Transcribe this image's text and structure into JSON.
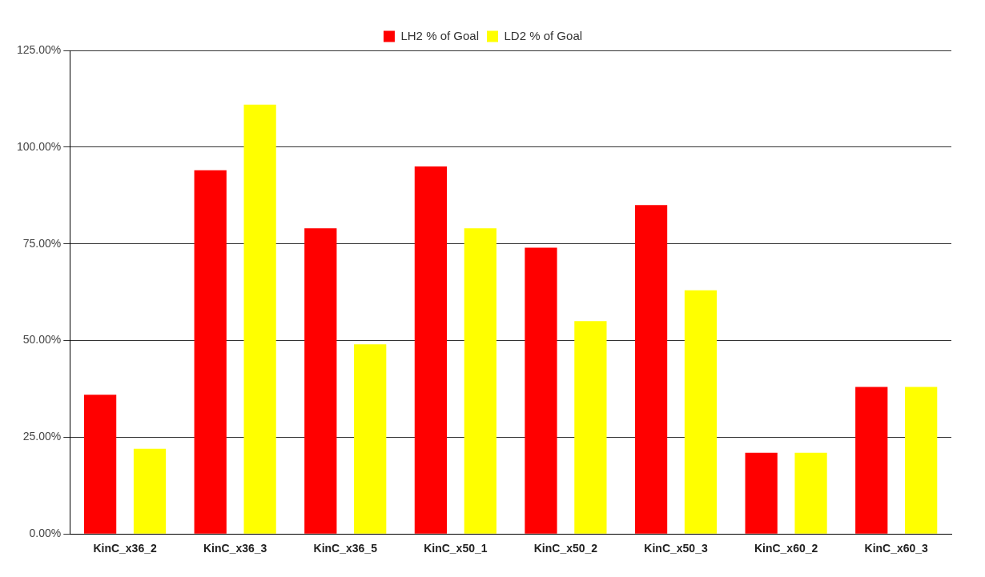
{
  "chart_data": {
    "type": "bar",
    "categories": [
      "KinC_x36_2",
      "KinC_x36_3",
      "KinC_x36_5",
      "KinC_x50_1",
      "KinC_x50_2",
      "KinC_x50_3",
      "KinC_x60_2",
      "KinC_x60_3"
    ],
    "series": [
      {
        "name": "LH2 % of Goal",
        "color": "#ff0000",
        "values": [
          36,
          94,
          79,
          95,
          74,
          85,
          21,
          38
        ]
      },
      {
        "name": "LD2 % of Goal",
        "color": "#ffff00",
        "values": [
          22,
          111,
          49,
          79,
          55,
          63,
          21,
          38
        ]
      }
    ],
    "ylim": [
      0,
      125
    ],
    "yticks": [
      {
        "value": 0,
        "label": "0.00%"
      },
      {
        "value": 25,
        "label": "25.00%"
      },
      {
        "value": 50,
        "label": "50.00%"
      },
      {
        "value": 75,
        "label": "75.00%"
      },
      {
        "value": 100,
        "label": "100.00%"
      },
      {
        "value": 125,
        "label": "125.00%"
      }
    ],
    "grid": "y",
    "legend": "top"
  }
}
